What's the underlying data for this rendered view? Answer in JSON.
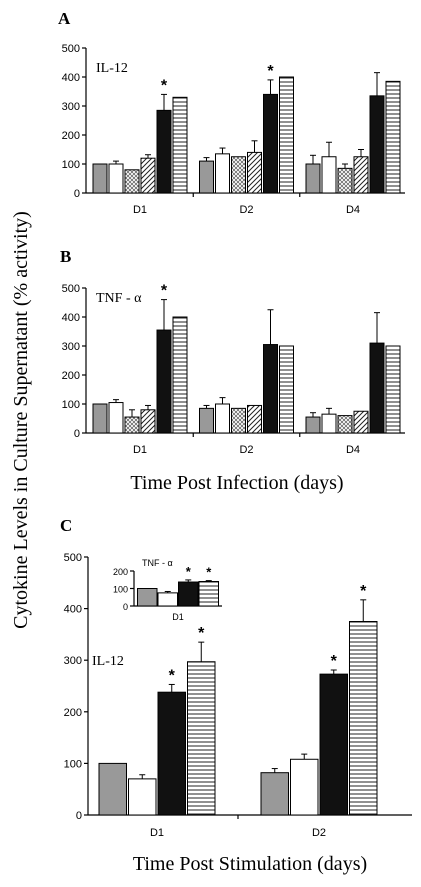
{
  "figure": {
    "ylabel": "Cytokine Levels in Culture Supernatant (% activity)",
    "colors": {
      "gray": "#999999",
      "white": "#ffffff",
      "crosshatch": "#ffffff",
      "diagonal": "#ffffff",
      "black": "#111111",
      "horizontal": "#ffffff"
    }
  },
  "chart_data": [
    {
      "type": "bar",
      "panel": "A",
      "annotation": "IL-12",
      "categories": [
        "D1",
        "D2",
        "D4"
      ],
      "series": [
        {
          "pattern": "gray",
          "values": [
            100,
            110,
            100
          ],
          "errors": [
            0,
            12,
            30
          ]
        },
        {
          "pattern": "white",
          "values": [
            100,
            135,
            125
          ],
          "errors": [
            10,
            20,
            50
          ]
        },
        {
          "pattern": "crosshatch",
          "values": [
            80,
            125,
            85
          ],
          "errors": [
            0,
            0,
            15
          ]
        },
        {
          "pattern": "diagonal",
          "values": [
            120,
            140,
            125
          ],
          "errors": [
            12,
            40,
            25
          ]
        },
        {
          "pattern": "black",
          "values": [
            285,
            340,
            335
          ],
          "errors": [
            55,
            50,
            80
          ]
        },
        {
          "pattern": "horizontal",
          "values": [
            330,
            400,
            385
          ],
          "errors": [
            0,
            0,
            0
          ]
        }
      ],
      "significance": [
        {
          "category": "D1",
          "series": 4,
          "label": "*"
        },
        {
          "category": "D2",
          "series": 4,
          "label": "*"
        }
      ],
      "yticks": [
        "0",
        "100",
        "200",
        "300",
        "400",
        "500"
      ],
      "ylim": [
        0,
        500
      ]
    },
    {
      "type": "bar",
      "panel": "B",
      "annotation": "TNF - α",
      "categories": [
        "D1",
        "D2",
        "D4"
      ],
      "xlabel": "Time Post Infection (days)",
      "series": [
        {
          "pattern": "gray",
          "values": [
            100,
            85,
            55
          ],
          "errors": [
            0,
            10,
            15
          ]
        },
        {
          "pattern": "white",
          "values": [
            105,
            100,
            65
          ],
          "errors": [
            10,
            22,
            20
          ]
        },
        {
          "pattern": "crosshatch",
          "values": [
            55,
            85,
            60
          ],
          "errors": [
            25,
            0,
            0
          ]
        },
        {
          "pattern": "diagonal",
          "values": [
            80,
            95,
            75
          ],
          "errors": [
            15,
            0,
            0
          ]
        },
        {
          "pattern": "black",
          "values": [
            355,
            305,
            310
          ],
          "errors": [
            105,
            120,
            105
          ]
        },
        {
          "pattern": "horizontal",
          "values": [
            400,
            300,
            300
          ],
          "errors": [
            0,
            0,
            0
          ]
        }
      ],
      "significance": [
        {
          "category": "D1",
          "series": 4,
          "label": "*"
        }
      ],
      "yticks": [
        "0",
        "100",
        "200",
        "300",
        "400",
        "500"
      ],
      "ylim": [
        0,
        500
      ]
    },
    {
      "type": "bar",
      "panel": "C",
      "annotation": "IL-12",
      "categories": [
        "D1",
        "D2"
      ],
      "xlabel": "Time Post Stimulation (days)",
      "series": [
        {
          "pattern": "gray",
          "values": [
            100,
            82
          ],
          "errors": [
            0,
            8
          ]
        },
        {
          "pattern": "white",
          "values": [
            70,
            108
          ],
          "errors": [
            8,
            10
          ]
        },
        {
          "pattern": "black",
          "values": [
            238,
            273
          ],
          "errors": [
            15,
            8
          ]
        },
        {
          "pattern": "horizontal",
          "values": [
            297,
            375
          ],
          "errors": [
            38,
            42
          ]
        }
      ],
      "significance": [
        {
          "category": "D1",
          "series": 2,
          "label": "*"
        },
        {
          "category": "D1",
          "series": 3,
          "label": "*"
        },
        {
          "category": "D2",
          "series": 2,
          "label": "*"
        },
        {
          "category": "D2",
          "series": 3,
          "label": "*"
        }
      ],
      "yticks": [
        "0",
        "100",
        "200",
        "300",
        "400",
        "500"
      ],
      "ylim": [
        0,
        500
      ],
      "inset": {
        "type": "bar",
        "annotation": "TNF - α",
        "categories": [
          "D1"
        ],
        "series": [
          {
            "pattern": "gray",
            "values": [
              100
            ],
            "errors": [
              0
            ]
          },
          {
            "pattern": "white",
            "values": [
              75
            ],
            "errors": [
              8
            ]
          },
          {
            "pattern": "black",
            "values": [
              137
            ],
            "errors": [
              12
            ]
          },
          {
            "pattern": "horizontal",
            "values": [
              140
            ],
            "errors": [
              5
            ]
          }
        ],
        "significance": [
          {
            "category": "D1",
            "series": 2,
            "label": "*"
          },
          {
            "category": "D1",
            "series": 3,
            "label": "*"
          }
        ],
        "yticks": [
          "0",
          "100",
          "200"
        ],
        "ylim": [
          0,
          200
        ]
      }
    }
  ]
}
